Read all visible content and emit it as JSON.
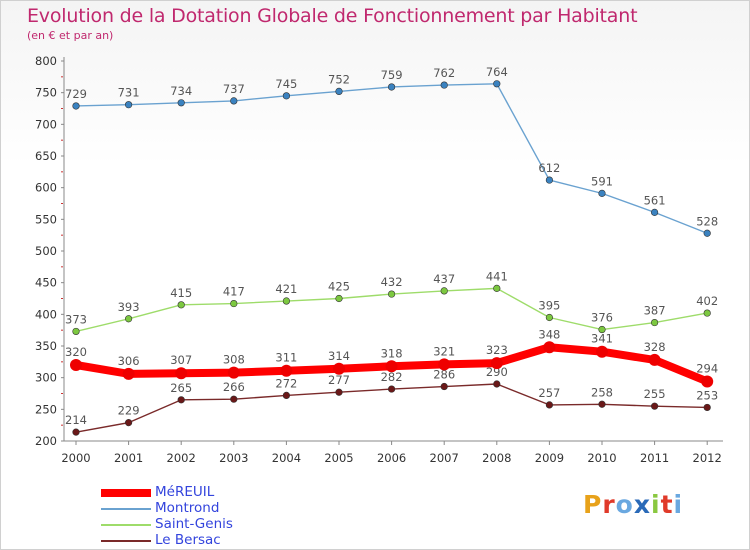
{
  "header": {
    "title": "Evolution de la Dotation Globale de Fonctionnement par Habitant",
    "subtitle": "(en € et par an)"
  },
  "logo": {
    "text": "Proxiti",
    "colors": [
      "#e8a21a",
      "#e03a2a",
      "#6aa8e0",
      "#2a6ab8",
      "#8ac840",
      "#e03a2a",
      "#6aa8e0"
    ]
  },
  "chart_data": {
    "type": "line",
    "title": "Evolution de la Dotation Globale de Fonctionnement par Habitant",
    "subtitle": "(en € et par an)",
    "xlabel": "",
    "ylabel": "",
    "ylim": [
      200,
      800
    ],
    "ytick_step": 50,
    "grid": false,
    "legend_position": "bottom-left",
    "categories": [
      "2000",
      "2001",
      "2002",
      "2003",
      "2004",
      "2005",
      "2006",
      "2007",
      "2008",
      "2009",
      "2010",
      "2011",
      "2012"
    ],
    "series": [
      {
        "name": "Montrond",
        "color": "#6aa2d0",
        "marker": "#3a82c0",
        "emphasis": false,
        "values": [
          729,
          731,
          734,
          737,
          745,
          752,
          759,
          762,
          764,
          612,
          591,
          561,
          528
        ]
      },
      {
        "name": "Saint-Genis",
        "color": "#9edc6a",
        "marker": "#7cc840",
        "emphasis": false,
        "values": [
          373,
          393,
          415,
          417,
          421,
          425,
          432,
          437,
          441,
          395,
          376,
          387,
          402
        ]
      },
      {
        "name": "Le Bersac",
        "color": "#7a2a2a",
        "marker": "#6a1818",
        "emphasis": false,
        "values": [
          214,
          229,
          265,
          266,
          272,
          277,
          282,
          286,
          290,
          257,
          258,
          255,
          253
        ]
      },
      {
        "name": "MéREUIL",
        "color": "#ff0000",
        "marker": "#ee0000",
        "emphasis": true,
        "values": [
          320,
          306,
          307,
          308,
          311,
          314,
          318,
          321,
          323,
          348,
          341,
          328,
          294
        ]
      }
    ],
    "legend_order": [
      "MéREUIL",
      "Montrond",
      "Saint-Genis",
      "Le Bersac"
    ]
  }
}
